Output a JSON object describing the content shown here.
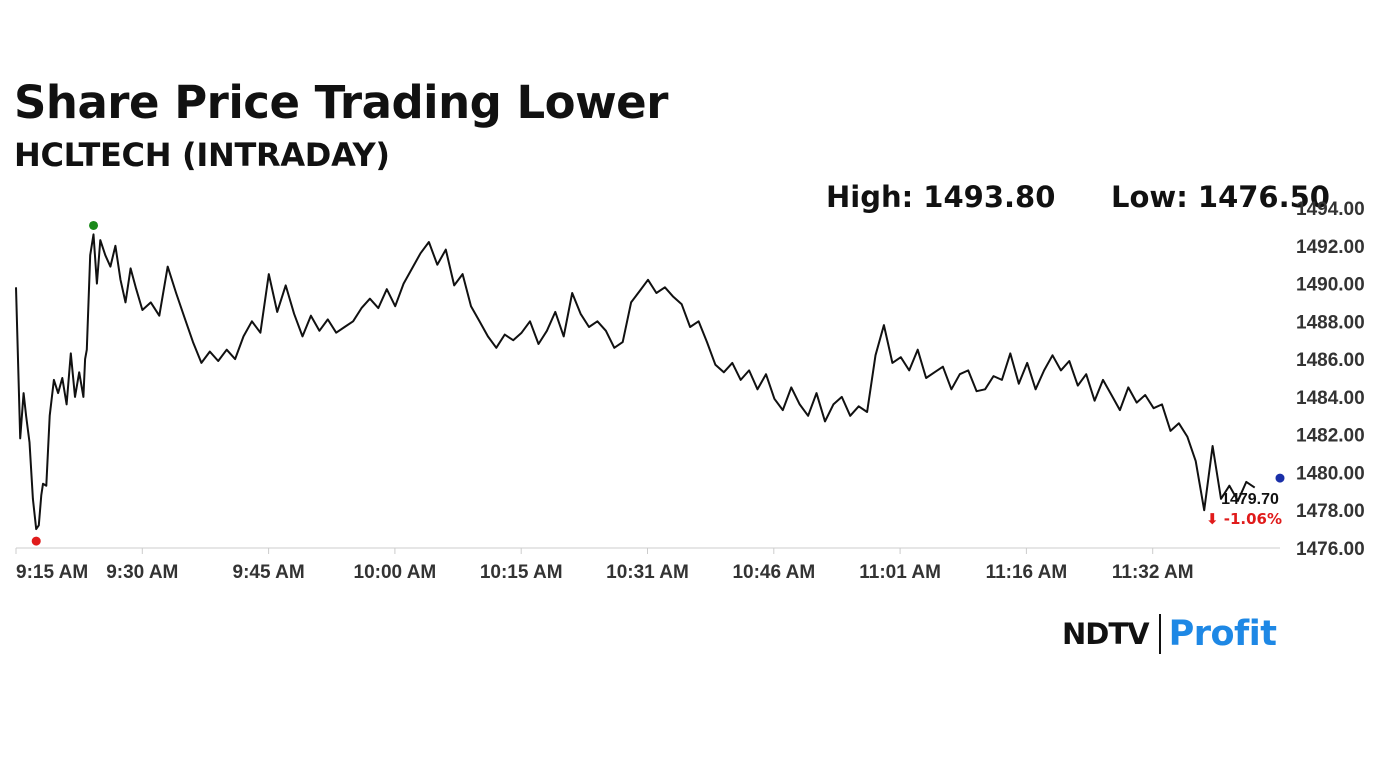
{
  "header": {
    "title": "Share Price Trading Lower",
    "subtitle": "HCLTECH (INTRADAY)",
    "high_label": "High: 1493.80",
    "low_label": "Low: 1476.50"
  },
  "logo": {
    "brand": "NDTV",
    "product": "Profit"
  },
  "colors": {
    "line": "#111111",
    "high_marker": "#1a8a1a",
    "low_marker": "#e01b1b",
    "last_marker": "#1a2fa8",
    "change_negative": "#e01b1b",
    "axis_text": "#333333",
    "brand_gradient_start": "#1e88e5",
    "brand_gradient_end": "#e91e63"
  },
  "chart_data": {
    "type": "line",
    "title": "Share Price Trading Lower",
    "subtitle": "HCLTECH (INTRADAY)",
    "x_ticks": [
      "9:15 AM",
      "9:30 AM",
      "9:45 AM",
      "10:00 AM",
      "10:15 AM",
      "10:31 AM",
      "10:46 AM",
      "11:01 AM",
      "11:16 AM",
      "11:32 AM"
    ],
    "y_ticks": [
      "1476.00",
      "1478.00",
      "1480.00",
      "1482.00",
      "1484.00",
      "1486.00",
      "1488.00",
      "1490.00",
      "1492.00",
      "1494.00"
    ],
    "ylim": [
      1476,
      1494
    ],
    "x_range_minutes": [
      0,
      150
    ],
    "grid": false,
    "series": [
      {
        "minute": [
          0,
          0.5,
          0.9,
          1.2,
          1.6,
          2.0,
          2.4,
          2.7,
          3.0,
          3.2,
          3.6,
          4.0,
          4.5,
          5.0,
          5.5,
          6.0,
          6.5,
          7.0,
          7.5,
          8.0,
          8.2,
          8.4,
          8.8,
          9.2,
          9.6,
          10.0,
          10.6,
          11.2,
          11.8,
          12.4,
          13.0,
          13.6,
          14.2,
          15.0,
          16.0,
          17.0,
          18.0,
          19.0,
          20.0,
          21.0,
          22.0,
          23.0,
          24.0,
          25.0,
          26.0,
          27.0,
          28.0,
          29.0,
          30.0,
          31.0,
          32.0,
          33.0,
          34.0,
          35.0,
          36.0,
          37.0,
          38.0,
          39.0,
          40.0,
          41.0,
          42.0,
          43.0,
          44.0,
          45.0,
          46.0,
          47.0,
          48.0,
          49.0,
          50.0,
          51.0,
          52.0,
          53.0,
          54.0,
          55.0,
          56.0,
          57.0,
          58.0,
          59.0,
          60.0,
          61.0,
          62.0,
          63.0,
          64.0,
          65.0,
          66.0,
          67.0,
          68.0,
          69.0,
          70.0,
          71.0,
          72.0,
          73.0,
          74.0,
          75.0,
          76.0,
          77.0,
          78.0,
          79.0,
          80.0,
          81.0,
          82.0,
          83.0,
          84.0,
          85.0,
          86.0,
          87.0,
          88.0,
          89.0,
          90.0,
          91.0,
          92.0,
          93.0,
          94.0,
          95.0,
          96.0,
          97.0,
          98.0,
          99.0,
          100.0,
          101.0,
          102.0,
          103.0,
          104.0,
          105.0,
          106.0,
          107.0,
          108.0,
          109.0,
          110.0,
          111.0,
          112.0,
          113.0,
          114.0,
          115.0,
          116.0,
          117.0,
          118.0,
          119.0,
          120.0,
          121.0,
          122.0,
          123.0,
          124.0,
          125.0,
          126.0,
          127.0,
          128.0,
          129.0,
          130.0,
          131.0,
          132.0,
          133.0,
          134.0,
          135.0,
          136.0,
          137.0,
          138.0,
          139.0,
          140.0,
          141.0,
          142.0,
          143.0,
          144.0,
          145.0,
          146.0,
          147.0
        ],
        "price": [
          1489.8,
          1481.8,
          1484.2,
          1483.0,
          1481.6,
          1478.6,
          1477.0,
          1477.2,
          1478.8,
          1479.4,
          1479.3,
          1483.0,
          1484.9,
          1484.2,
          1485.0,
          1483.6,
          1486.3,
          1484.0,
          1485.3,
          1484.0,
          1486.0,
          1486.5,
          1491.5,
          1492.6,
          1490.0,
          1492.3,
          1491.5,
          1490.9,
          1492.0,
          1490.2,
          1489.0,
          1490.8,
          1489.8,
          1488.6,
          1489.0,
          1488.3,
          1490.9,
          1489.5,
          1488.2,
          1486.9,
          1485.8,
          1486.4,
          1485.9,
          1486.5,
          1486.0,
          1487.2,
          1488.0,
          1487.4,
          1490.5,
          1488.5,
          1489.9,
          1488.4,
          1487.2,
          1488.3,
          1487.5,
          1488.1,
          1487.4,
          1487.7,
          1488.0,
          1488.7,
          1489.2,
          1488.7,
          1489.7,
          1488.8,
          1490.0,
          1490.8,
          1491.6,
          1492.2,
          1491.0,
          1491.8,
          1489.9,
          1490.5,
          1488.8,
          1488.0,
          1487.2,
          1486.6,
          1487.3,
          1487.0,
          1487.4,
          1488.0,
          1486.8,
          1487.5,
          1488.5,
          1487.2,
          1489.5,
          1488.4,
          1487.7,
          1488.0,
          1487.5,
          1486.6,
          1486.9,
          1489.0,
          1489.6,
          1490.2,
          1489.5,
          1489.8,
          1489.3,
          1488.9,
          1487.7,
          1488.0,
          1486.9,
          1485.7,
          1485.3,
          1485.8,
          1484.9,
          1485.4,
          1484.4,
          1485.2,
          1483.9,
          1483.3,
          1484.5,
          1483.6,
          1483.0,
          1484.2,
          1482.7,
          1483.6,
          1484.0,
          1483.0,
          1483.5,
          1483.2,
          1486.2,
          1487.8,
          1485.8,
          1486.1,
          1485.4,
          1486.5,
          1485.0,
          1485.3,
          1485.6,
          1484.4,
          1485.2,
          1485.4,
          1484.3,
          1484.4,
          1485.1,
          1484.9,
          1486.3,
          1484.7,
          1485.8,
          1484.4,
          1485.4,
          1486.2,
          1485.4,
          1485.9,
          1484.6,
          1485.2,
          1483.8,
          1484.9,
          1484.1,
          1483.3,
          1484.5,
          1483.7,
          1484.1,
          1483.4,
          1483.6,
          1482.2,
          1482.6,
          1481.9,
          1480.6,
          1478.0,
          1481.4,
          1478.6,
          1479.3,
          1478.5,
          1479.5,
          1479.2
        ]
      }
    ],
    "high_value": 1493.8,
    "low_value": 1476.5,
    "last_value": 1479.7,
    "last_label": "1479.70",
    "change_label": "⬇ -1.06%"
  }
}
